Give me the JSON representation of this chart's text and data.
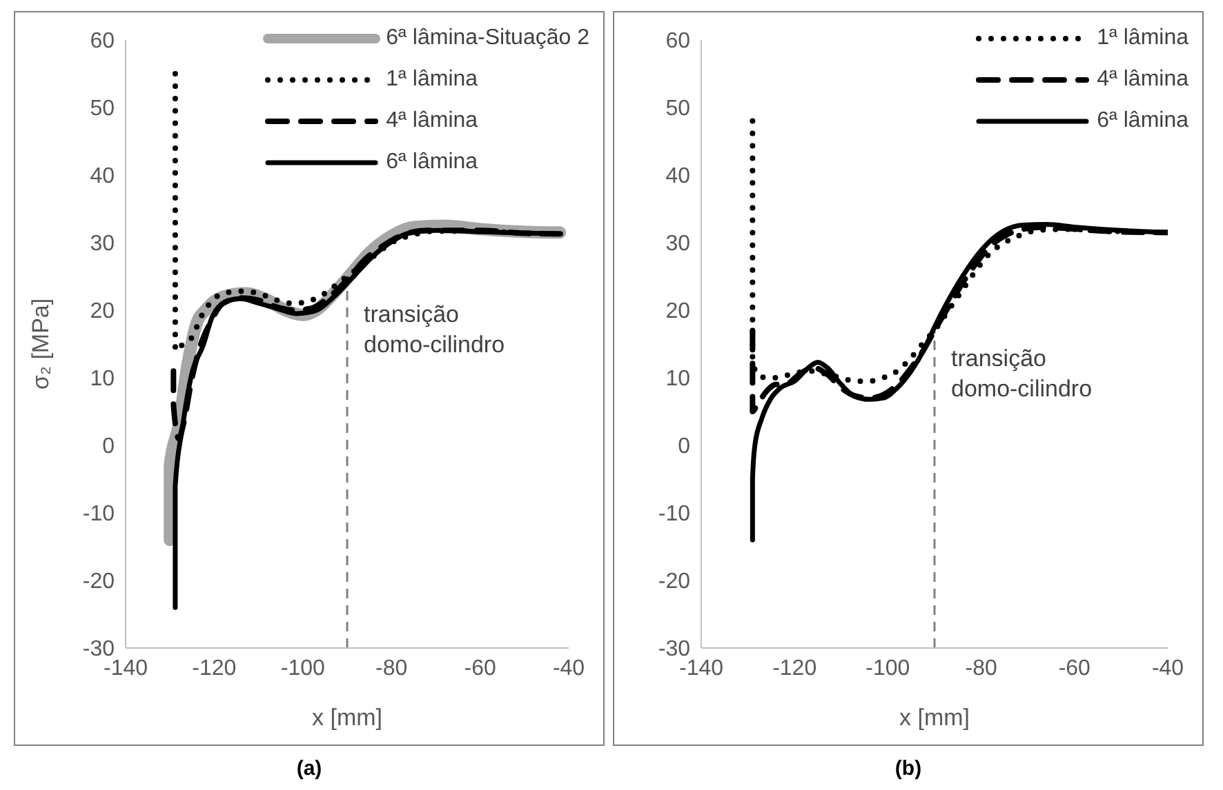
{
  "chart_data": [
    {
      "type": "line",
      "title": "(a)",
      "xlabel": "x [mm]",
      "ylabel": "σ₂ [MPa]",
      "xlim": [
        -140,
        -40
      ],
      "xticks": [
        -140,
        -120,
        -100,
        -80,
        -60,
        -40
      ],
      "ylim": [
        -30,
        60
      ],
      "yticks": [
        -30,
        -20,
        -10,
        0,
        10,
        20,
        30,
        40,
        50,
        60
      ],
      "legend": "top right",
      "ref_lines": [
        {
          "axis": "x",
          "value": -90,
          "label": "transição domo-cilindro",
          "color": "#808080",
          "line_style": "dashed"
        }
      ],
      "series": [
        {
          "name": "6ª lâmina-Situação 2",
          "color": "#a6a6a6",
          "line_style": "solid",
          "x": [
            -130,
            -130,
            -128,
            -126,
            -124,
            -122,
            -118,
            -113,
            -108,
            -104,
            -100,
            -97,
            -93,
            -89,
            -85,
            -80,
            -75,
            -68,
            -60,
            -50,
            -42
          ],
          "values": [
            -14,
            -3,
            3,
            12,
            18,
            20,
            22,
            22.5,
            21.5,
            20,
            19.3,
            20,
            22.5,
            25.5,
            28.5,
            31,
            32.3,
            32.5,
            32,
            31.6,
            31.5
          ]
        },
        {
          "name": "1ª lâmina",
          "color": "#000000",
          "line_style": "dotted",
          "x": [
            -128.8,
            -128.8,
            -127,
            -125,
            -123,
            -121,
            -118,
            -114,
            -110,
            -106,
            -102,
            -98,
            -95,
            -92,
            -88,
            -84,
            -80,
            -76,
            -70,
            -60,
            -50,
            -42
          ],
          "values": [
            55,
            14,
            15,
            16,
            19,
            21,
            22.5,
            22.8,
            22.5,
            21.5,
            21,
            21.5,
            22.5,
            24,
            26,
            28,
            30,
            31,
            31.7,
            31.7,
            31.4,
            31.3
          ]
        },
        {
          "name": "4ª lâmina",
          "color": "#000000",
          "line_style": "dashed",
          "x": [
            -129.2,
            -129.2,
            -128,
            -127,
            -125,
            -123,
            -121,
            -118,
            -114,
            -110,
            -106,
            -102,
            -98,
            -94,
            -90,
            -86,
            -82,
            -78,
            -72,
            -60,
            -50,
            -42
          ],
          "values": [
            11,
            6,
            1,
            3,
            10,
            15,
            18,
            21,
            21.8,
            21.5,
            20.5,
            20,
            20.3,
            22,
            24.5,
            27.5,
            29.5,
            31,
            31.8,
            31.8,
            31.4,
            31.3
          ]
        },
        {
          "name": "6ª lâmina",
          "color": "#000000",
          "line_style": "solid",
          "x": [
            -128.8,
            -128.8,
            -127.2,
            -125.1,
            -122.5,
            -120.4,
            -117.2,
            -114.1,
            -109.8,
            -105.6,
            -101.4,
            -97.2,
            -93,
            -88.7,
            -84.5,
            -80.3,
            -76.1,
            -69.7,
            -59.2,
            -48.6,
            -41.8
          ],
          "values": [
            -24,
            -6,
            2.5,
            10.5,
            14.8,
            19.1,
            21.3,
            21.7,
            21,
            20.2,
            19.5,
            19.9,
            22,
            24.9,
            27.8,
            30,
            31.4,
            31.8,
            31.6,
            31.4,
            31.3
          ]
        }
      ]
    },
    {
      "type": "line",
      "title": "(b)",
      "xlabel": "x [mm]",
      "xlim": [
        -140,
        -40
      ],
      "xticks": [
        -140,
        -120,
        -100,
        -80,
        -60,
        -40
      ],
      "ylim": [
        -30,
        60
      ],
      "yticks": [
        -30,
        -20,
        -10,
        0,
        10,
        20,
        30,
        40,
        50,
        60
      ],
      "legend": "top right",
      "ref_lines": [
        {
          "axis": "x",
          "value": -90,
          "label": "transição domo-cilindro",
          "color": "#808080",
          "line_style": "dashed"
        }
      ],
      "series": [
        {
          "name": "1ª lâmina",
          "color": "#000000",
          "line_style": "dotted",
          "x": [
            -129,
            -129,
            -128,
            -126,
            -124,
            -122,
            -119,
            -116,
            -113,
            -110,
            -107,
            -104,
            -101,
            -98,
            -95,
            -92,
            -90,
            -87,
            -84,
            -81,
            -78,
            -75,
            -72,
            -68,
            -62,
            -55,
            -48,
            -40
          ],
          "values": [
            48,
            13,
            10.5,
            10,
            10,
            10.3,
            10.8,
            11,
            10.5,
            10,
            9.5,
            9.5,
            10,
            11,
            13,
            15.5,
            17,
            20,
            23,
            26,
            28.5,
            30,
            31,
            31.8,
            32,
            31.8,
            31.6,
            31.5
          ]
        },
        {
          "name": "4ª lâmina",
          "color": "#000000",
          "line_style": "dashed",
          "x": [
            -129,
            -129,
            -128,
            -126,
            -124,
            -122,
            -119,
            -116,
            -113,
            -110,
            -107,
            -104,
            -101,
            -98,
            -95,
            -92,
            -90,
            -87,
            -84,
            -81,
            -78,
            -75,
            -71,
            -66,
            -60,
            -50,
            -40
          ],
          "values": [
            17,
            5,
            6,
            8,
            9,
            9,
            10.5,
            11.5,
            10.5,
            8.5,
            7.3,
            7,
            7.5,
            9,
            11.5,
            14.5,
            17,
            20.5,
            24,
            27,
            29.5,
            31,
            32,
            32.3,
            32,
            31.6,
            31.5
          ]
        },
        {
          "name": "6ª lâmina",
          "color": "#000000",
          "line_style": "solid",
          "x": [
            -129,
            -129,
            -128.5,
            -127,
            -125,
            -123,
            -120,
            -117,
            -115,
            -113,
            -110,
            -107,
            -104,
            -101,
            -98,
            -95,
            -92,
            -90,
            -87,
            -84,
            -81,
            -78,
            -75,
            -71,
            -66,
            -60,
            -50,
            -40
          ],
          "values": [
            -14,
            -5,
            0,
            4,
            7,
            8.5,
            9.5,
            11.5,
            12.3,
            11.5,
            9,
            7.2,
            6.8,
            7,
            8.5,
            11,
            14.5,
            17.5,
            21.5,
            25,
            28,
            30.3,
            31.8,
            32.6,
            32.7,
            32.3,
            31.8,
            31.5
          ]
        }
      ]
    }
  ]
}
